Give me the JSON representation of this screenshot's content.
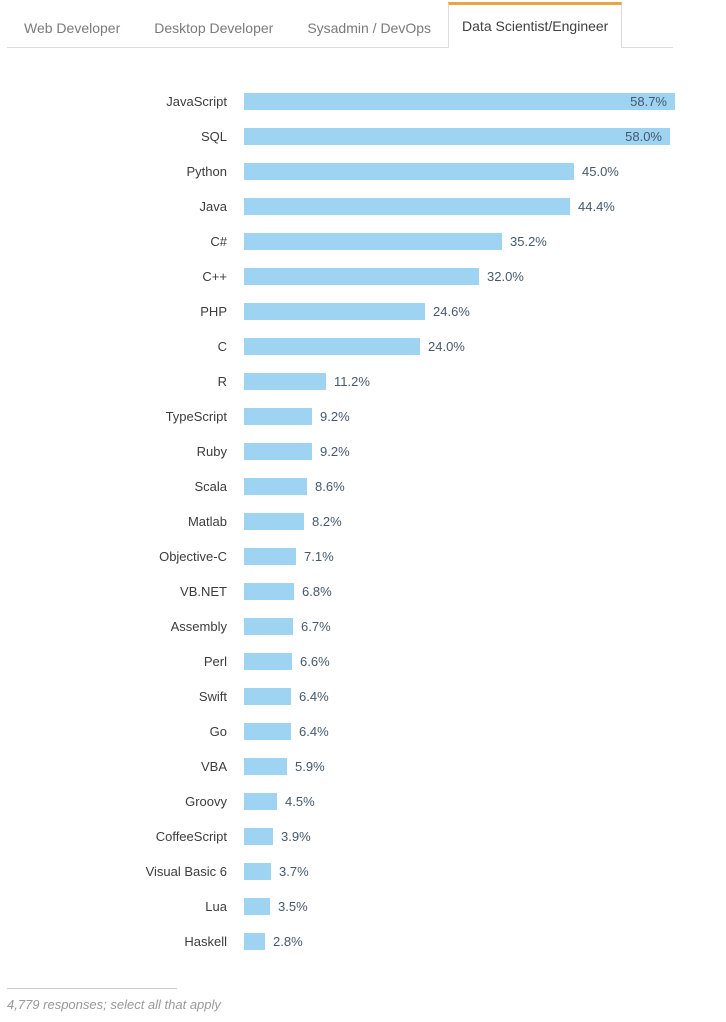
{
  "tabs": [
    {
      "label": "Web Developer",
      "active": false
    },
    {
      "label": "Desktop Developer",
      "active": false
    },
    {
      "label": "Sysadmin / DevOps",
      "active": false
    },
    {
      "label": "Data Scientist/Engineer",
      "active": true
    }
  ],
  "chart_data": {
    "type": "bar",
    "orientation": "horizontal",
    "title": "",
    "xlabel": "",
    "ylabel": "",
    "xlim": [
      0,
      65.6
    ],
    "grid": false,
    "value_suffix": "%",
    "value_decimals": 1,
    "inside_label_threshold": 50,
    "categories": [
      "JavaScript",
      "SQL",
      "Python",
      "Java",
      "C#",
      "C++",
      "PHP",
      "C",
      "R",
      "TypeScript",
      "Ruby",
      "Scala",
      "Matlab",
      "Objective-C",
      "VB.NET",
      "Assembly",
      "Perl",
      "Swift",
      "Go",
      "VBA",
      "Groovy",
      "CoffeeScript",
      "Visual Basic 6",
      "Lua",
      "Haskell"
    ],
    "values": [
      58.7,
      58.0,
      45.0,
      44.4,
      35.2,
      32.0,
      24.6,
      24.0,
      11.2,
      9.2,
      9.2,
      8.6,
      8.2,
      7.1,
      6.8,
      6.7,
      6.6,
      6.4,
      6.4,
      5.9,
      4.5,
      3.9,
      3.7,
      3.5,
      2.8
    ]
  },
  "colors": {
    "bar": "#9fd3f2",
    "value_label": "#44596e",
    "category_label": "#3c3c3c",
    "tab_active_accent": "#eaa440",
    "tab_inactive_text": "#7a7a7a",
    "tab_active_text": "#404040",
    "border": "#dcdcdc"
  },
  "footer": {
    "note": "4,779 responses; select all that apply"
  }
}
